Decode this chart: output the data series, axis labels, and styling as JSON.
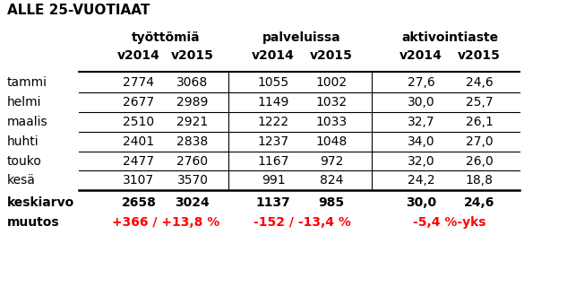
{
  "title": "ALLE 25-VUOTIAAT",
  "group_headers": [
    "työttömiä",
    "palveluissa",
    "aktivointiaste"
  ],
  "col_headers": [
    "v2014",
    "v2015",
    "v2014",
    "v2015",
    "v2014",
    "v2015"
  ],
  "row_labels": [
    "tammi",
    "helmi",
    "maalis",
    "huhti",
    "touko",
    "kesä"
  ],
  "data_rows": [
    [
      "2774",
      "3068",
      "1055",
      "1002",
      "27,6",
      "24,6"
    ],
    [
      "2677",
      "2989",
      "1149",
      "1032",
      "30,0",
      "25,7"
    ],
    [
      "2510",
      "2921",
      "1222",
      "1033",
      "32,7",
      "26,1"
    ],
    [
      "2401",
      "2838",
      "1237",
      "1048",
      "34,0",
      "27,0"
    ],
    [
      "2477",
      "2760",
      "1167",
      "972",
      "32,0",
      "26,0"
    ],
    [
      "3107",
      "3570",
      "991",
      "824",
      "24,2",
      "18,8"
    ]
  ],
  "keskiarvo_label": "keskiarvo",
  "keskiarvo_values": [
    "2658",
    "3024",
    "1137",
    "985",
    "30,0",
    "24,6"
  ],
  "muutos_label": "muutos",
  "muutos_texts": [
    "+366 / +13,8 %",
    "-152 / -13,4 %",
    "-5,4 %-yks"
  ],
  "muutos_color": "#ff0000",
  "bg_color": "#ffffff",
  "text_color": "#000000",
  "header_bold": true,
  "title_fontsize": 11,
  "header_fontsize": 10,
  "cell_fontsize": 10
}
